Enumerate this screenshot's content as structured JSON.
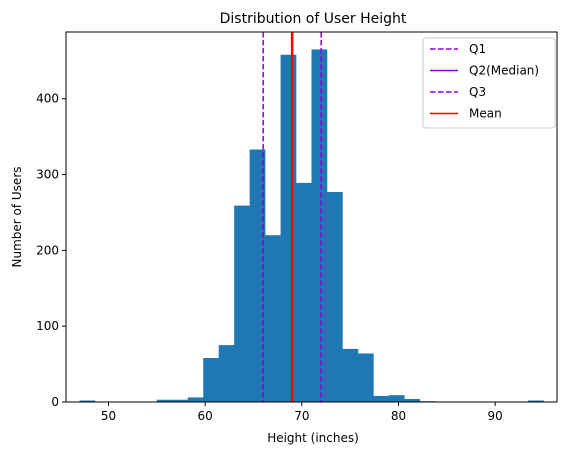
{
  "chart_data": {
    "type": "bar",
    "title": "Distribution of User Height",
    "xlabel": "Height (inches)",
    "ylabel": "Number of Users",
    "xlim": [
      45.6,
      96.4
    ],
    "ylim": [
      0,
      488
    ],
    "xticks": [
      50,
      60,
      70,
      80,
      90
    ],
    "yticks": [
      0,
      100,
      200,
      300,
      400
    ],
    "bar_color": "#1f77b4",
    "bins": [
      {
        "x0": 47.0,
        "x1": 48.6,
        "count": 2
      },
      {
        "x0": 48.6,
        "x1": 50.2,
        "count": 0
      },
      {
        "x0": 50.2,
        "x1": 51.8,
        "count": 0
      },
      {
        "x0": 51.8,
        "x1": 53.4,
        "count": 0
      },
      {
        "x0": 53.4,
        "x1": 55.0,
        "count": 0
      },
      {
        "x0": 55.0,
        "x1": 56.6,
        "count": 3
      },
      {
        "x0": 56.6,
        "x1": 58.2,
        "count": 3
      },
      {
        "x0": 58.2,
        "x1": 59.8,
        "count": 6
      },
      {
        "x0": 59.8,
        "x1": 61.4,
        "count": 58
      },
      {
        "x0": 61.4,
        "x1": 63.0,
        "count": 75
      },
      {
        "x0": 63.0,
        "x1": 64.6,
        "count": 259
      },
      {
        "x0": 64.6,
        "x1": 66.2,
        "count": 333
      },
      {
        "x0": 66.2,
        "x1": 67.8,
        "count": 220
      },
      {
        "x0": 67.8,
        "x1": 69.4,
        "count": 458
      },
      {
        "x0": 69.4,
        "x1": 71.0,
        "count": 289
      },
      {
        "x0": 71.0,
        "x1": 72.6,
        "count": 465
      },
      {
        "x0": 72.6,
        "x1": 74.2,
        "count": 277
      },
      {
        "x0": 74.2,
        "x1": 75.8,
        "count": 70
      },
      {
        "x0": 75.8,
        "x1": 77.4,
        "count": 64
      },
      {
        "x0": 77.4,
        "x1": 79.0,
        "count": 8
      },
      {
        "x0": 79.0,
        "x1": 80.6,
        "count": 9
      },
      {
        "x0": 80.6,
        "x1": 82.2,
        "count": 4
      },
      {
        "x0": 82.2,
        "x1": 83.8,
        "count": 1
      },
      {
        "x0": 83.8,
        "x1": 85.4,
        "count": 0
      },
      {
        "x0": 85.4,
        "x1": 87.0,
        "count": 0
      },
      {
        "x0": 87.0,
        "x1": 88.6,
        "count": 0
      },
      {
        "x0": 88.6,
        "x1": 90.2,
        "count": 0
      },
      {
        "x0": 90.2,
        "x1": 91.8,
        "count": 0
      },
      {
        "x0": 91.8,
        "x1": 93.4,
        "count": 0
      },
      {
        "x0": 93.4,
        "x1": 95.0,
        "count": 2
      }
    ],
    "reference_lines": [
      {
        "name": "Q1",
        "x": 66.0,
        "color": "#9400d3",
        "style": "dashed"
      },
      {
        "name": "Q2(Median)",
        "x": 69.0,
        "color": "#9400d3",
        "style": "solid"
      },
      {
        "name": "Q3",
        "x": 72.0,
        "color": "#9400d3",
        "style": "dashed"
      },
      {
        "name": "Mean",
        "x": 69.0,
        "color": "#ff0000",
        "style": "solid"
      }
    ],
    "legend_position": "top-right",
    "grid": false
  }
}
